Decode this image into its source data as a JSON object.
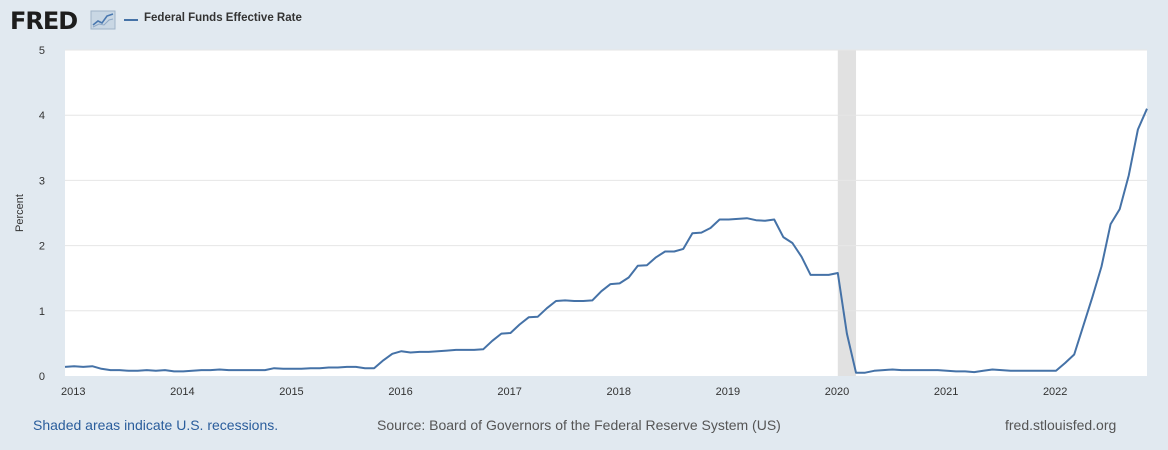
{
  "header": {
    "logo_text": "FRED",
    "logo_icon": "chart-line-icon",
    "legend_label": "Federal Funds Effective Rate"
  },
  "footer": {
    "recessions_note": "Shaded areas indicate U.S. recessions.",
    "source": "Source: Board of Governors of the Federal Reserve System (US)",
    "site": "fred.stlouisfed.org"
  },
  "colors": {
    "line": "#4572a7",
    "recession": "#e1e1e1",
    "grid": "#e6e6e6",
    "background": "#e1e9f0",
    "plot": "#ffffff"
  },
  "chart_data": {
    "type": "line",
    "title": "",
    "xlabel": "",
    "ylabel": "Percent",
    "xlim": [
      2013.0,
      2022.917
    ],
    "ylim": [
      0,
      5
    ],
    "yticks": [
      0,
      1,
      2,
      3,
      4,
      5
    ],
    "xticks": [
      2013,
      2014,
      2015,
      2016,
      2017,
      2018,
      2019,
      2020,
      2021,
      2022
    ],
    "grid": true,
    "legend_position": "top-left",
    "recessions": [
      {
        "start": 2020.083,
        "end": 2020.25
      }
    ],
    "series": [
      {
        "name": "Federal Funds Effective Rate",
        "start": "2013-01",
        "frequency": "monthly",
        "values": [
          0.14,
          0.15,
          0.14,
          0.15,
          0.11,
          0.09,
          0.09,
          0.08,
          0.08,
          0.09,
          0.08,
          0.09,
          0.07,
          0.07,
          0.08,
          0.09,
          0.09,
          0.1,
          0.09,
          0.09,
          0.09,
          0.09,
          0.09,
          0.12,
          0.11,
          0.11,
          0.11,
          0.12,
          0.12,
          0.13,
          0.13,
          0.14,
          0.14,
          0.12,
          0.12,
          0.24,
          0.34,
          0.38,
          0.36,
          0.37,
          0.37,
          0.38,
          0.39,
          0.4,
          0.4,
          0.4,
          0.41,
          0.54,
          0.65,
          0.66,
          0.79,
          0.9,
          0.91,
          1.04,
          1.15,
          1.16,
          1.15,
          1.15,
          1.16,
          1.3,
          1.41,
          1.42,
          1.51,
          1.69,
          1.7,
          1.82,
          1.91,
          1.91,
          1.95,
          2.19,
          2.2,
          2.27,
          2.4,
          2.4,
          2.41,
          2.42,
          2.39,
          2.38,
          2.4,
          2.13,
          2.04,
          1.83,
          1.55,
          1.55,
          1.55,
          1.58,
          0.65,
          0.05,
          0.05,
          0.08,
          0.09,
          0.1,
          0.09,
          0.09,
          0.09,
          0.09,
          0.09,
          0.08,
          0.07,
          0.07,
          0.06,
          0.08,
          0.1,
          0.09,
          0.08,
          0.08,
          0.08,
          0.08,
          0.08,
          0.08,
          0.2,
          0.33,
          0.77,
          1.21,
          1.68,
          2.33,
          2.56,
          3.08,
          3.78,
          4.1
        ]
      }
    ]
  }
}
